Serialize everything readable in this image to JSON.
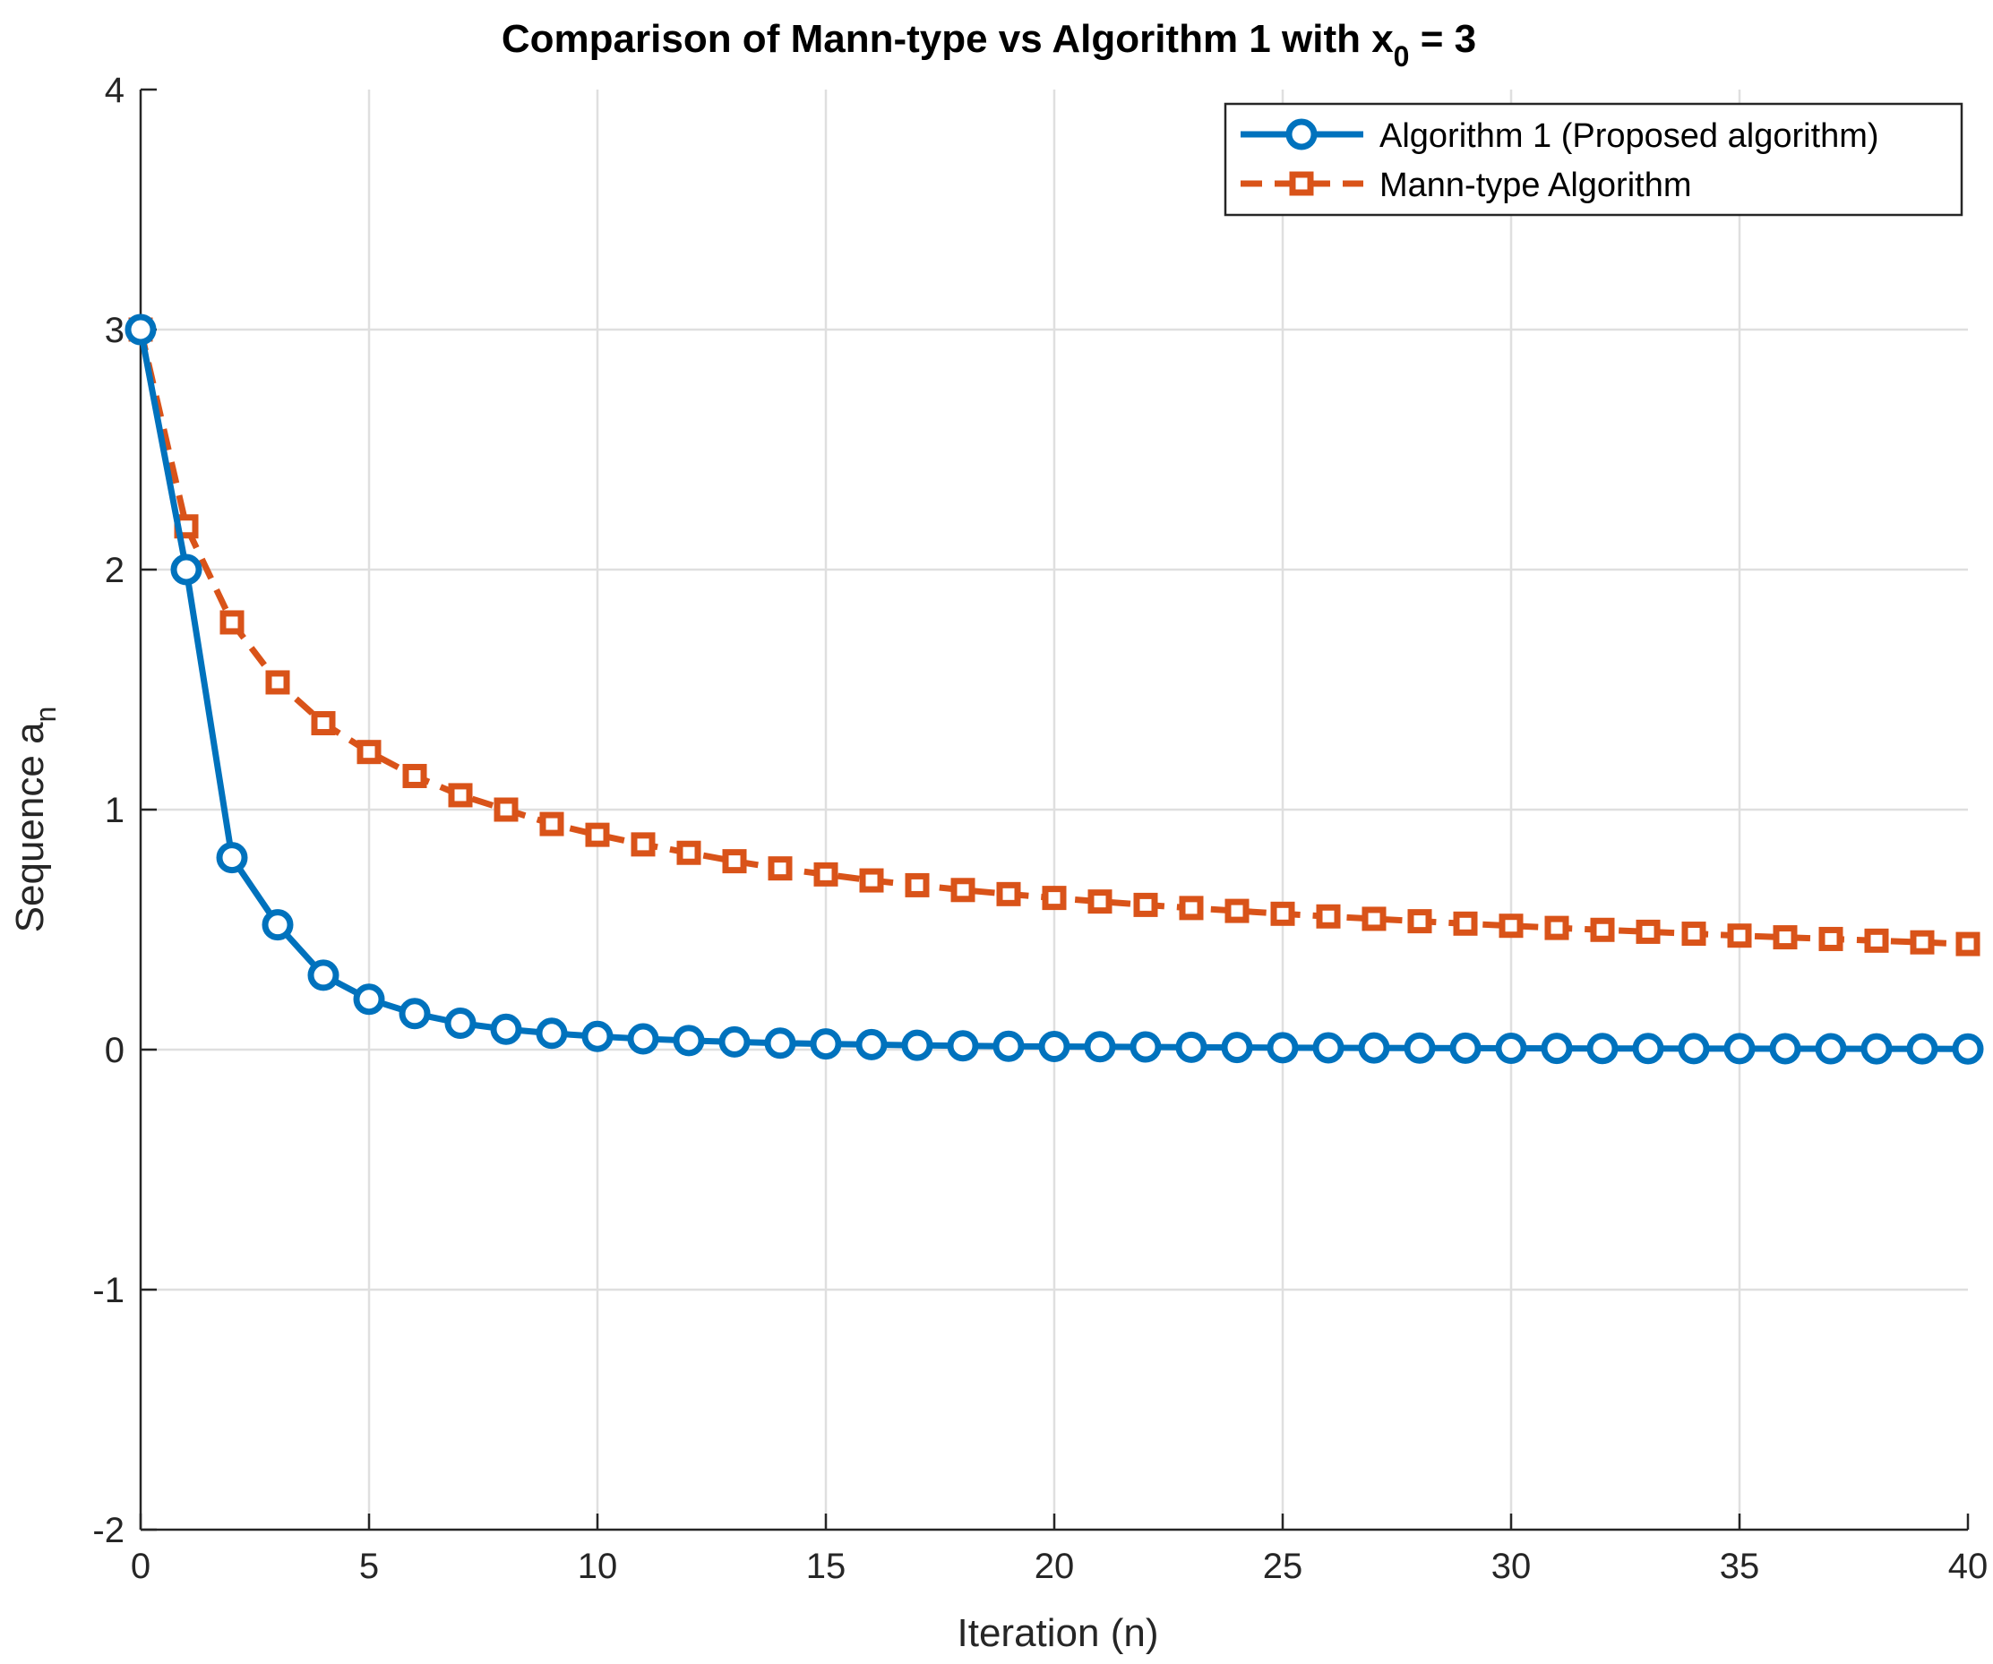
{
  "chart_data": {
    "type": "line",
    "title": "Comparison of Mann-type vs Algorithm 1 with x",
    "title_subscript": "0",
    "title_suffix": " = 3",
    "xlabel": "Iteration (n)",
    "ylabel": "Sequence a",
    "ylabel_subscript": "n",
    "xlim": [
      0,
      40
    ],
    "ylim": [
      -2,
      4
    ],
    "xticks": [
      0,
      5,
      10,
      15,
      20,
      25,
      30,
      35,
      40
    ],
    "yticks": [
      -2,
      -1,
      0,
      1,
      2,
      3,
      4
    ],
    "grid": true,
    "legend_position": "top-right",
    "x": [
      0,
      1,
      2,
      3,
      4,
      5,
      6,
      7,
      8,
      9,
      10,
      11,
      12,
      13,
      14,
      15,
      16,
      17,
      18,
      19,
      20,
      21,
      22,
      23,
      24,
      25,
      26,
      27,
      28,
      29,
      30,
      31,
      32,
      33,
      34,
      35,
      36,
      37,
      38,
      39,
      40
    ],
    "series": [
      {
        "name": "Algorithm 1 (Proposed algorithm)",
        "color": "#0072BD",
        "line_style": "solid",
        "marker": "circle",
        "values": [
          3.0,
          2.0,
          0.8,
          0.52,
          0.31,
          0.21,
          0.15,
          0.11,
          0.085,
          0.068,
          0.055,
          0.045,
          0.038,
          0.032,
          0.027,
          0.024,
          0.021,
          0.018,
          0.016,
          0.014,
          0.013,
          0.012,
          0.011,
          0.01,
          0.009,
          0.008,
          0.0075,
          0.007,
          0.0065,
          0.006,
          0.0055,
          0.005,
          0.0048,
          0.0045,
          0.0042,
          0.004,
          0.0038,
          0.0036,
          0.0034,
          0.0032,
          0.003
        ]
      },
      {
        "name": "Mann-type Algorithm",
        "color": "#D95319",
        "line_style": "dashed",
        "marker": "square",
        "values": [
          3.0,
          2.18,
          1.78,
          1.53,
          1.36,
          1.24,
          1.14,
          1.06,
          1.0,
          0.94,
          0.895,
          0.855,
          0.82,
          0.785,
          0.755,
          0.73,
          0.705,
          0.685,
          0.665,
          0.648,
          0.632,
          0.617,
          0.603,
          0.59,
          0.578,
          0.566,
          0.555,
          0.545,
          0.535,
          0.525,
          0.516,
          0.507,
          0.499,
          0.491,
          0.483,
          0.475,
          0.468,
          0.461,
          0.454,
          0.447,
          0.44
        ]
      }
    ]
  }
}
